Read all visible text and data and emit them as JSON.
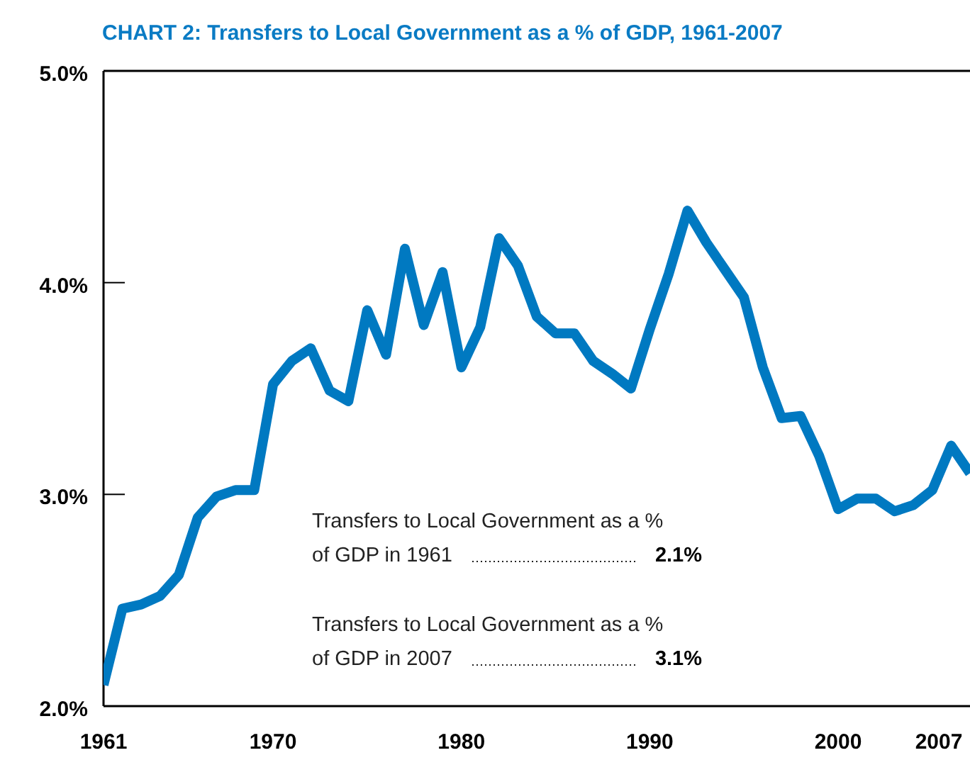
{
  "chart_data": {
    "type": "line",
    "title": "CHART 2: Transfers to Local Government as a % of GDP, 1961-2007",
    "x": [
      1961,
      1962,
      1963,
      1964,
      1965,
      1966,
      1967,
      1968,
      1969,
      1970,
      1971,
      1972,
      1973,
      1974,
      1975,
      1976,
      1977,
      1978,
      1979,
      1980,
      1981,
      1982,
      1983,
      1984,
      1985,
      1986,
      1987,
      1988,
      1989,
      1990,
      1991,
      1992,
      1993,
      1994,
      1995,
      1996,
      1997,
      1998,
      1999,
      2000,
      2001,
      2002,
      2003,
      2004,
      2005,
      2006,
      2007
    ],
    "series": [
      {
        "color": "#0079c1",
        "values": [
          2.1,
          2.46,
          2.48,
          2.52,
          2.62,
          2.89,
          2.99,
          3.02,
          3.02,
          3.52,
          3.63,
          3.69,
          3.49,
          3.44,
          3.87,
          3.66,
          4.16,
          3.8,
          4.05,
          3.6,
          3.79,
          4.21,
          4.08,
          3.84,
          3.76,
          3.76,
          3.63,
          3.57,
          3.5,
          3.78,
          4.04,
          4.34,
          4.19,
          4.06,
          3.93,
          3.6,
          3.36,
          3.37,
          3.18,
          2.93,
          2.98,
          2.98,
          2.92,
          2.95,
          3.02,
          3.23,
          3.1
        ]
      }
    ],
    "xlim": [
      1961,
      2007
    ],
    "xticks": [
      1961,
      1970,
      1980,
      1990,
      2000,
      2007
    ],
    "ylim": [
      2,
      5
    ],
    "yticks": [
      {
        "value": 2,
        "label": "2.0%"
      },
      {
        "value": 3,
        "label": "3.0%"
      },
      {
        "value": 4,
        "label": "4.0%"
      },
      {
        "value": 5,
        "label": "5.0%"
      }
    ],
    "grid": false,
    "marker": "none",
    "line_style": "solid",
    "annotations": [
      "Transfers to Local Government as a %\nof GDP in 1961\t2.1%",
      "Transfers to Local Government as a %\nof GDP in 2007\t3.1%"
    ]
  }
}
